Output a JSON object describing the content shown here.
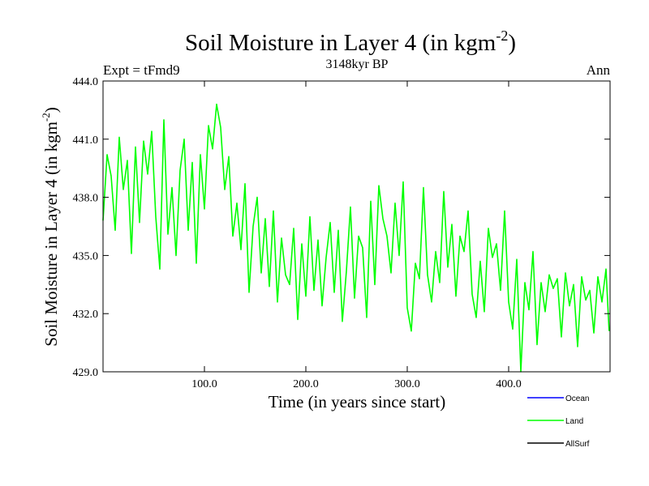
{
  "chart_data": {
    "type": "line",
    "title_main": "Soil Moisture in Layer 4 (in kgm",
    "title_sup": "-2",
    "title_close": ")",
    "subtitle": "3148kyr BP",
    "expt_label": "Expt = tFmd9",
    "period_label": "Ann",
    "xlabel": "Time (in years since start)",
    "ylabel_main": "Soil Moisture in Layer 4 (in kgm",
    "ylabel_sup": "-2",
    "ylabel_close": ")",
    "xlim": [
      0,
      500
    ],
    "ylim": [
      429.0,
      444.0
    ],
    "x_ticks": [
      100,
      200,
      300,
      400
    ],
    "x_tick_labels": [
      "100.0",
      "200.0",
      "300.0",
      "400.0"
    ],
    "y_ticks": [
      429,
      432,
      435,
      438,
      441,
      444
    ],
    "y_tick_labels": [
      "429.0",
      "432.0",
      "435.0",
      "438.0",
      "441.0",
      "444.0"
    ],
    "legend": [
      {
        "name": "Ocean",
        "color": "#0000ff"
      },
      {
        "name": "Land",
        "color": "#00ff00"
      },
      {
        "name": "AllSurf",
        "color": "#000000"
      }
    ],
    "series": [
      {
        "name": "Land",
        "color": "#00ff00",
        "x": [
          0,
          4,
          8,
          12,
          16,
          20,
          24,
          28,
          32,
          36,
          40,
          44,
          48,
          52,
          56,
          60,
          64,
          68,
          72,
          76,
          80,
          84,
          88,
          92,
          96,
          100,
          104,
          108,
          112,
          116,
          120,
          124,
          128,
          132,
          136,
          140,
          144,
          148,
          152,
          156,
          160,
          164,
          168,
          172,
          176,
          180,
          184,
          188,
          192,
          196,
          200,
          204,
          208,
          212,
          216,
          220,
          224,
          228,
          232,
          236,
          240,
          244,
          248,
          252,
          256,
          260,
          264,
          268,
          272,
          276,
          280,
          284,
          288,
          292,
          296,
          300,
          304,
          308,
          312,
          316,
          320,
          324,
          328,
          332,
          336,
          340,
          344,
          348,
          352,
          356,
          360,
          364,
          368,
          372,
          376,
          380,
          384,
          388,
          392,
          396,
          400,
          404,
          408,
          412,
          416,
          420,
          424,
          428,
          432,
          436,
          440,
          444,
          448,
          452,
          456,
          460,
          464,
          468,
          472,
          476,
          480,
          484,
          488,
          492,
          496,
          499
        ],
        "values": [
          436.8,
          440.2,
          439.1,
          436.3,
          441.1,
          438.4,
          439.9,
          435.1,
          440.6,
          436.7,
          440.9,
          439.2,
          441.4,
          437.0,
          434.3,
          442.0,
          436.1,
          438.5,
          435.0,
          439.4,
          441.0,
          436.3,
          439.8,
          434.6,
          440.2,
          437.4,
          441.7,
          440.5,
          442.8,
          441.6,
          438.4,
          440.1,
          436.0,
          437.7,
          435.3,
          438.7,
          433.1,
          436.5,
          438.0,
          434.1,
          436.9,
          433.4,
          437.3,
          432.6,
          435.9,
          434.0,
          433.5,
          436.4,
          431.7,
          435.6,
          432.9,
          437.0,
          433.2,
          435.8,
          432.4,
          434.9,
          436.7,
          433.1,
          436.3,
          431.6,
          434.2,
          437.5,
          432.8,
          436.0,
          435.4,
          431.8,
          437.8,
          433.5,
          438.6,
          436.9,
          436.0,
          434.1,
          437.7,
          435.0,
          438.8,
          432.3,
          431.1,
          434.6,
          433.8,
          438.5,
          434.0,
          432.6,
          435.2,
          433.6,
          438.3,
          434.4,
          436.6,
          432.9,
          436.0,
          435.2,
          437.3,
          433.0,
          431.8,
          434.7,
          432.1,
          436.4,
          434.9,
          435.6,
          433.2,
          437.3,
          432.6,
          431.2,
          434.8,
          429.0,
          433.6,
          432.2,
          435.2,
          430.4,
          433.6,
          432.1,
          434.0,
          433.3,
          433.8,
          430.8,
          434.1,
          432.4,
          433.5,
          430.3,
          433.9,
          432.7,
          433.2,
          431.0,
          433.9,
          432.6,
          434.3,
          431.1
        ]
      }
    ]
  }
}
